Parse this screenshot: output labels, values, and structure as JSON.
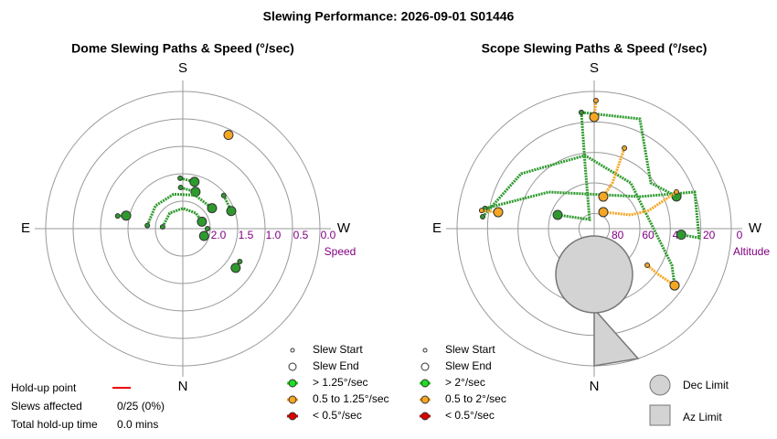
{
  "title": "Slewing Performance: 2026-09-01 S01446",
  "chart_data": [
    {
      "type": "polar",
      "title": "Dome Slewing Paths & Speed (°/sec)",
      "directions": {
        "top": "S",
        "left": "E",
        "right": "W",
        "bottom": "N"
      },
      "radial_label": "Speed",
      "rlim": [
        2.5,
        0
      ],
      "rticks": [
        {
          "value": 2,
          "label": "2.0"
        },
        1.5,
        {
          "value": 1,
          "label": "1.0"
        },
        0.5,
        {
          "value": 0,
          "label": "0.0"
        }
      ],
      "series": [
        {
          "color": "#2e9a2e",
          "theta": [
            177,
            194
          ],
          "r": [
            1.58,
            1.62
          ]
        },
        {
          "color": "#2e9a2e",
          "theta": [
            177,
            199
          ],
          "r": [
            1.75,
            1.79
          ]
        },
        {
          "color": "#2e9a2e",
          "theta": [
            101,
            103
          ],
          "r": [
            1.29,
            1.44
          ]
        },
        {
          "color": "#f5a623",
          "theta": [
            206,
            206
          ],
          "r": [
            0.59,
            0.6
          ]
        },
        {
          "color": "#2e9a2e",
          "theta": [
            231,
            250
          ],
          "r": [
            1.54,
            1.56
          ]
        },
        {
          "color": "#2e9a2e",
          "theta": [
            300,
            306.6
          ],
          "r": [
            1.3,
            1.3
          ]
        },
        {
          "color": "#2e9a2e",
          "theta": [
            95,
            130,
            165,
            200,
            235
          ],
          "r": [
            1.85,
            1.85,
            1.85,
            1.85,
            1.85
          ]
        },
        {
          "color": "#2e9a2e",
          "theta": [
            95,
            140,
            180,
            220,
            250
          ],
          "r": [
            2.13,
            2.13,
            2.13,
            2.13,
            2.13
          ]
        },
        {
          "color": "#2e9a2e",
          "theta": [
            270,
            289
          ],
          "r": [
            2.05,
            2.09
          ]
        }
      ],
      "legend": [
        {
          "label": "Slew Start"
        },
        {
          "label": "Slew End"
        },
        {
          "label": "> 1.25°/sec",
          "color": "#22dd22"
        },
        {
          "label": "0.5 to 1.25°/sec",
          "color": "#f5a623"
        },
        {
          "label": "< 0.5°/sec",
          "color": "#dd0000"
        }
      ]
    },
    {
      "type": "polar",
      "title": "Scope Slewing Paths & Speed (°/sec)",
      "directions": {
        "top": "S",
        "left": "E",
        "right": "W",
        "bottom": "N"
      },
      "radial_label": "Altitude",
      "rlim": [
        90,
        0
      ],
      "rticks": [
        80,
        60,
        40,
        20,
        0
      ],
      "series": [
        {
          "color": "#2e9a2e",
          "theta": [
            173.7,
            202.6,
            231.1,
            248.7
          ],
          "r": [
            13.3,
            12,
            42.2,
            32
          ]
        },
        {
          "color": "#2e9a2e",
          "theta": [
            173.7,
            171.9,
            153.4,
            110.6
          ],
          "r": [
            13.3,
            47.6,
            83.3,
            64.4
          ]
        },
        {
          "color": "#2e9a2e",
          "theta": [
            96.1,
            126.9,
            172.9,
            218.7,
            295.2,
            305.2
          ],
          "r": [
            16.4,
            30,
            41.6,
            51.6,
            33.6,
            25.4
          ]
        },
        {
          "color": "#2e9a2e",
          "theta": [
            100.5,
            128.7,
            235,
            250,
            275,
            274
          ],
          "r": [
            17.2,
            51.6,
            53.4,
            19.8,
            20.8,
            32.7
          ]
        },
        {
          "color": "#f5a623",
          "theta": [
            180.8,
            180
          ],
          "r": [
            6,
            16.8
          ]
        },
        {
          "color": "#f5a623",
          "theta": [
            200.6,
            201.8,
            195.9
          ],
          "r": [
            33.6,
            57.7,
            68.2
          ]
        },
        {
          "color": "#f5a623",
          "theta": [
            304.6,
            305.5,
            305.2
          ],
          "r": [
            47.7,
            38.4,
            25.4
          ]
        },
        {
          "color": "#f5a623",
          "theta": [
            246,
            251.6,
            249.4,
            209
          ],
          "r": [
            30.9,
            52.1,
            64.4,
            77.6
          ]
        },
        {
          "color": "#f5a623",
          "theta": [
            99.2,
            99.7
          ],
          "r": [
            15.2,
            26.1
          ]
        }
      ],
      "legend": [
        {
          "label": "Slew Start"
        },
        {
          "label": "Slew End"
        },
        {
          "label": "> 2°/sec",
          "color": "#22dd22"
        },
        {
          "label": "0.5 to 2°/sec",
          "color": "#f5a623"
        },
        {
          "label": "< 0.5°/sec",
          "color": "#dd0000"
        }
      ]
    }
  ],
  "limits": {
    "dec": "Dec Limit",
    "az": "Az Limit"
  },
  "holdup": {
    "point_label": "Hold-up point",
    "slews_label": "Slews affected",
    "slews_value": "0/25 (0%)",
    "time_label": "Total hold-up time",
    "time_value": "0.0 mins"
  }
}
